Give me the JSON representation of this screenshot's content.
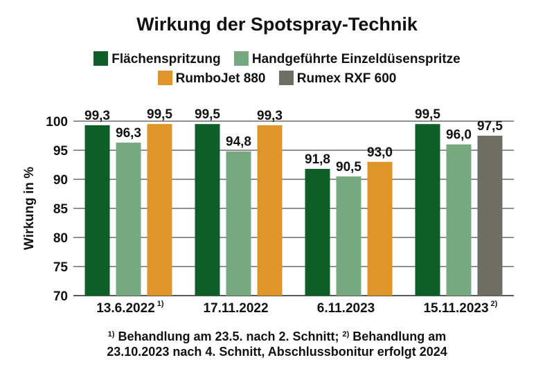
{
  "chart_data": {
    "type": "bar",
    "title": "Wirkung der Spotspray-Technik",
    "ylabel": "Wirkung in %",
    "ylim": [
      70,
      100
    ],
    "yticks": [
      70,
      75,
      80,
      85,
      90,
      95,
      100
    ],
    "grid": true,
    "legend_position": "top",
    "categories": [
      {
        "label": "13.6.2022",
        "note": "1)"
      },
      {
        "label": "17.11.2022",
        "note": ""
      },
      {
        "label": "6.11.2023",
        "note": ""
      },
      {
        "label": "15.11.2023",
        "note": "2)"
      }
    ],
    "series": [
      {
        "name": "Flächenspritzung",
        "color": "#0f5e2a",
        "values": [
          99.3,
          99.5,
          91.8,
          99.5
        ],
        "labels": [
          "99,3",
          "99,5",
          "91,8",
          "99,5"
        ]
      },
      {
        "name": "Handgeführte Einzeldüsenspritze",
        "color": "#76a97f",
        "values": [
          96.3,
          94.8,
          90.5,
          96.0
        ],
        "labels": [
          "96,3",
          "94,8",
          "90,5",
          "96,0"
        ]
      },
      {
        "name": "RumboJet 880",
        "color": "#e0952a",
        "values": [
          99.5,
          99.3,
          93.0,
          null
        ],
        "labels": [
          "99,5",
          "99,3",
          "93,0",
          ""
        ]
      },
      {
        "name": "Rumex RXF 600",
        "color": "#6e6e62",
        "values": [
          null,
          null,
          null,
          97.5
        ],
        "labels": [
          "",
          "",
          "",
          "97,5"
        ]
      }
    ]
  },
  "footnote": {
    "mark1": "1)",
    "text1": " Behandlung am 23.5. nach 2. Schnitt; ",
    "mark2": "2)",
    "text2": " Behandlung am",
    "line2": "23.10.2023 nach 4. Schnitt, Abschlussbonitur erfolgt 2024"
  }
}
